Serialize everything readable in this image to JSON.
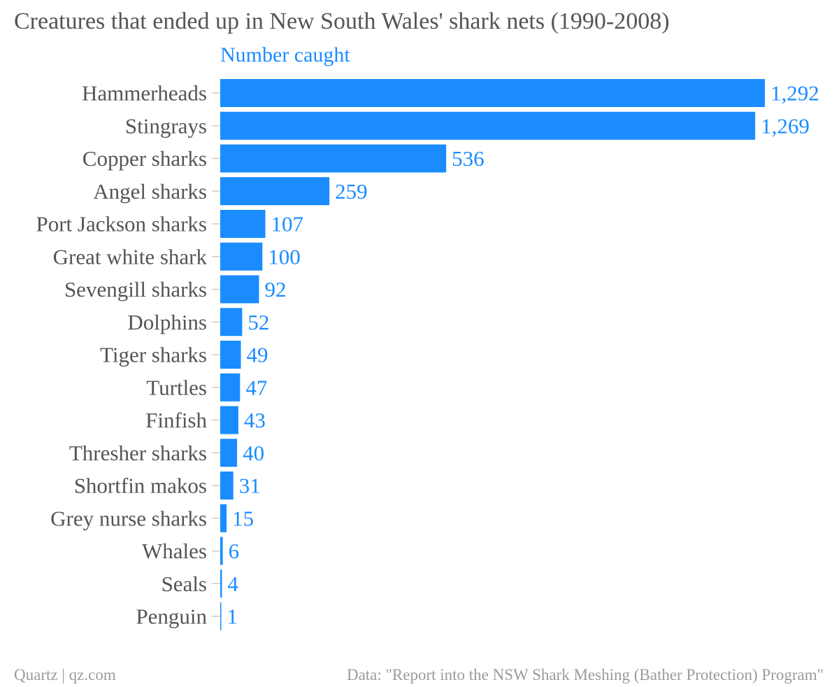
{
  "chart_data": {
    "type": "bar",
    "orientation": "horizontal",
    "title": "Creatures that ended up in New South Wales' shark nets (1990-2008)",
    "series": [
      {
        "name": "Number caught",
        "color": "#1a8cff"
      }
    ],
    "categories": [
      "Hammerheads",
      "Stingrays",
      "Copper sharks",
      "Angel sharks",
      "Port Jackson sharks",
      "Great white shark",
      "Sevengill sharks",
      "Dolphins",
      "Tiger sharks",
      "Turtles",
      "Finfish",
      "Thresher sharks",
      "Shortfin makos",
      "Grey nurse sharks",
      "Whales",
      "Seals",
      "Penguin"
    ],
    "values": [
      1292,
      1269,
      536,
      259,
      107,
      100,
      92,
      52,
      49,
      47,
      43,
      40,
      31,
      15,
      6,
      4,
      1
    ],
    "value_labels": [
      "1,292",
      "1,269",
      "536",
      "259",
      "107",
      "100",
      "92",
      "52",
      "49",
      "47",
      "43",
      "40",
      "31",
      "15",
      "6",
      "4",
      "1"
    ],
    "xlim": [
      0,
      1292
    ],
    "grid": false,
    "colors": {
      "bar": "#1a8cff",
      "value_label": "#1a8cff",
      "category_label": "#555555",
      "footer": "#9b9b9b",
      "tick": "#cccccc"
    }
  },
  "footer": {
    "source_left": "Quartz | qz.com",
    "source_right": "Data: \"Report into the NSW Shark Meshing (Bather Protection) Program\""
  }
}
